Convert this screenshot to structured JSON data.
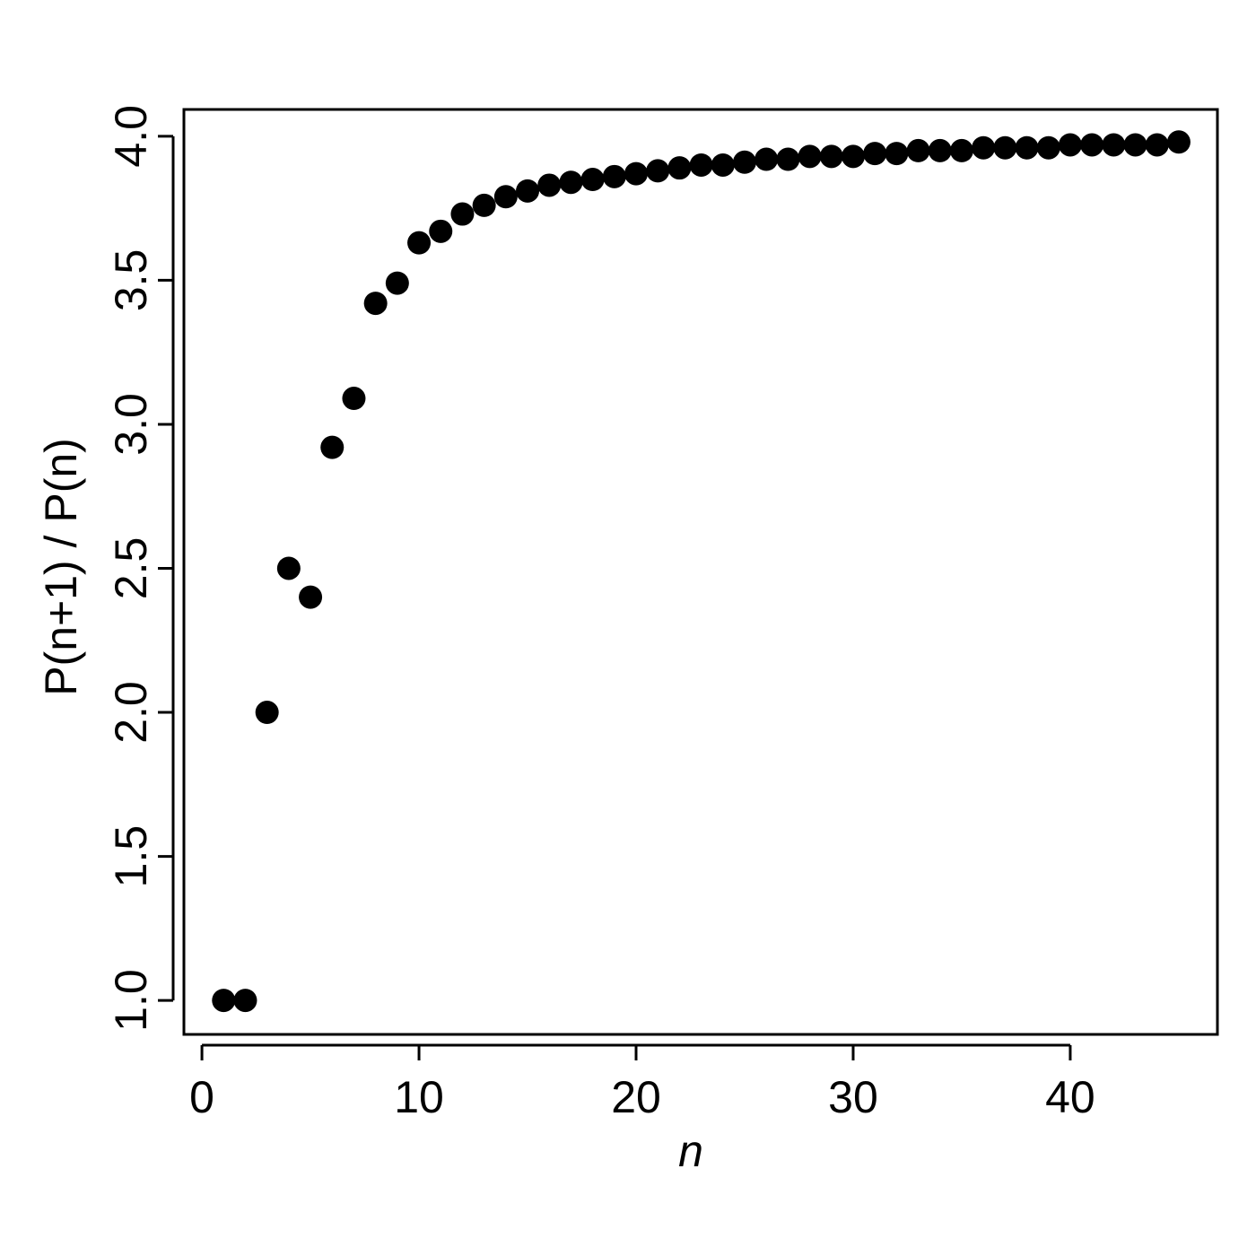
{
  "chart_data": {
    "type": "scatter",
    "x_label": "n",
    "y_label": "P(n+1) / P(n)",
    "series": [
      {
        "color": "#000000",
        "x": [
          1,
          2,
          3,
          4,
          5,
          6,
          7,
          8,
          9,
          10,
          11,
          12,
          13,
          14,
          15,
          16,
          17,
          18,
          19,
          20,
          21,
          22,
          23,
          24,
          25,
          26,
          27,
          28,
          29,
          30,
          31,
          32,
          33,
          34,
          35,
          36,
          37,
          38,
          39,
          40,
          41,
          42,
          43,
          44,
          45
        ],
        "values": [
          1.0,
          1.0,
          2.0,
          2.5,
          2.4,
          2.92,
          3.09,
          3.42,
          3.49,
          3.63,
          3.67,
          3.73,
          3.76,
          3.79,
          3.81,
          3.83,
          3.84,
          3.85,
          3.86,
          3.87,
          3.88,
          3.89,
          3.9,
          3.9,
          3.91,
          3.92,
          3.92,
          3.93,
          3.93,
          3.93,
          3.94,
          3.94,
          3.95,
          3.95,
          3.95,
          3.96,
          3.96,
          3.96,
          3.96,
          3.97,
          3.97,
          3.97,
          3.97,
          3.97,
          3.98
        ]
      }
    ],
    "xlim": [
      -0.83,
      46.78
    ],
    "ylim": [
      0.882,
      4.093
    ],
    "xticks": [
      0,
      10,
      20,
      30,
      40
    ],
    "yticks": [
      {
        "value": 1,
        "label": "1.0"
      },
      1.5,
      {
        "value": 2,
        "label": "2.0"
      },
      2.5,
      {
        "value": 3,
        "label": "3.0"
      },
      3.5,
      {
        "value": 4,
        "label": "4.0"
      }
    ],
    "grid": false
  }
}
